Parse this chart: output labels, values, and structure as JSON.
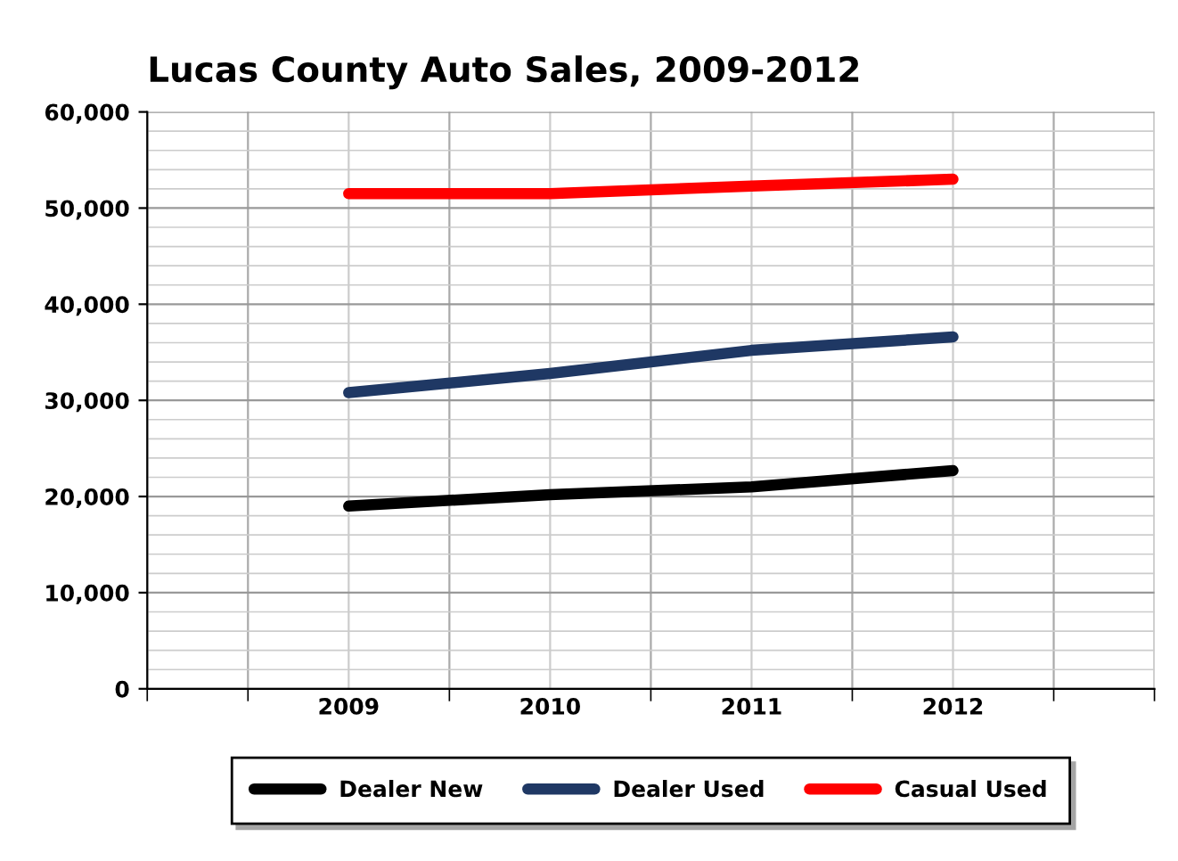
{
  "chart_data": {
    "type": "line",
    "title": "Lucas County Auto Sales, 2009-2012",
    "categories": [
      "2009",
      "2010",
      "2011",
      "2012"
    ],
    "series": [
      {
        "name": "Dealer New",
        "color": "#000000",
        "values": [
          19000,
          20200,
          21000,
          22700
        ]
      },
      {
        "name": "Dealer Used",
        "color": "#1f3864",
        "values": [
          30800,
          32800,
          35200,
          36600
        ]
      },
      {
        "name": "Casual Used",
        "color": "#ff0000",
        "values": [
          51500,
          51500,
          52300,
          53000
        ]
      }
    ],
    "ylim": [
      0,
      60000
    ],
    "yticks": [
      0,
      {
        "value": 10000,
        "label": "10,000"
      },
      {
        "value": 20000,
        "label": "20,000"
      },
      {
        "value": 30000,
        "label": "30,000"
      },
      {
        "value": 40000,
        "label": "40,000"
      },
      {
        "value": 50000,
        "label": "50,000"
      },
      {
        "value": 60000,
        "label": "60,000"
      }
    ],
    "grid": true,
    "legend": "bottom",
    "marker": "none",
    "line_style": "solid"
  }
}
